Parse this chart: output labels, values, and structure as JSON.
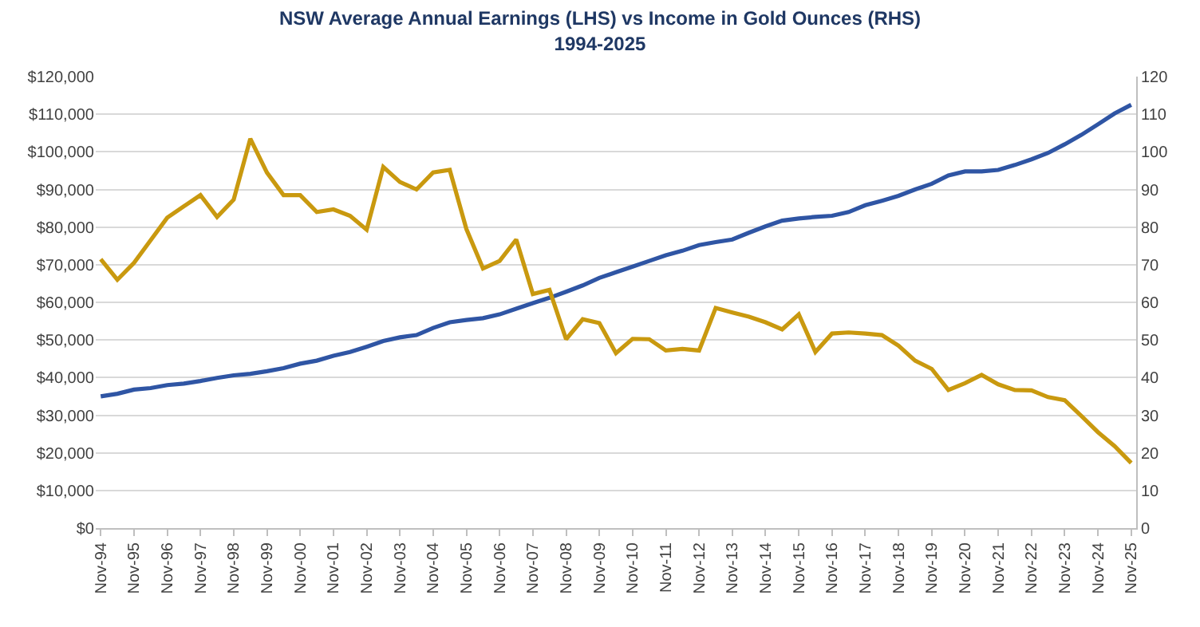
{
  "chart_data": {
    "type": "line",
    "title": "NSW Average Annual Earnings (LHS) vs Income in Gold Ounces (RHS)",
    "subtitle": "1994-2025",
    "categories": [
      "Nov-94",
      null,
      "Nov-95",
      null,
      "Nov-96",
      null,
      "Nov-97",
      null,
      "Nov-98",
      null,
      "Nov-99",
      null,
      "Nov-00",
      null,
      "Nov-01",
      null,
      "Nov-02",
      null,
      "Nov-03",
      null,
      "Nov-04",
      null,
      "Nov-05",
      null,
      "Nov-06",
      null,
      "Nov-07",
      null,
      "Nov-08",
      null,
      "Nov-09",
      null,
      "Nov-10",
      null,
      "Nov-11",
      null,
      "Nov-12",
      null,
      "Nov-13",
      null,
      "Nov-14",
      null,
      "Nov-15",
      null,
      "Nov-16",
      null,
      "Nov-17",
      null,
      "Nov-18",
      null,
      "Nov-19",
      null,
      "Nov-20",
      null,
      "Nov-21",
      null,
      "Nov-22",
      null,
      "Nov-23",
      null,
      "Nov-24",
      null,
      "Nov-25"
    ],
    "series": [
      {
        "color": "#2f55a4",
        "values": [
          35000,
          35700,
          36800,
          37200,
          38000,
          38400,
          39100,
          39900,
          40600,
          41000,
          41700,
          42500,
          43700,
          44500,
          45800,
          46800,
          48200,
          49700,
          50700,
          51300,
          53200,
          54700,
          55300,
          55800,
          56800,
          58300,
          59800,
          61200,
          62800,
          64500,
          66500,
          68000,
          69500,
          71000,
          72500,
          73700,
          75200,
          76000,
          76700,
          78500,
          80200,
          81700,
          82300,
          82700,
          83000,
          84000,
          85800,
          87000,
          88300,
          90000,
          91500,
          93700,
          94800,
          94800,
          95200,
          96500,
          98000,
          99700,
          102000,
          104500,
          107300,
          110200,
          112500
        ]
      },
      {
        "color": "#c9990f",
        "axis": "y2",
        "values": [
          71.5,
          66,
          70.5,
          76.5,
          82.5,
          85.5,
          88.5,
          82.7,
          87.3,
          103.5,
          94.5,
          88.5,
          88.5,
          84,
          84.7,
          83,
          79.3,
          96,
          92,
          90,
          94.5,
          95.2,
          79.5,
          69,
          71,
          76.7,
          62.2,
          63.3,
          50.2,
          55.5,
          54.5,
          46.5,
          50.3,
          50.2,
          47.2,
          47.6,
          47.2,
          58.5,
          57.3,
          56.2,
          54.7,
          52.8,
          56.8,
          46.8,
          51.7,
          52,
          51.7,
          51.3,
          48.5,
          44.5,
          42.3,
          36.7,
          38.5,
          40.7,
          38.2,
          36.7,
          36.6,
          34.8,
          34,
          29.8,
          25.5,
          21.8,
          17.3
        ]
      }
    ],
    "ylim": [
      0,
      120000
    ],
    "yticks": [
      {
        "value": 0,
        "label": "$0"
      },
      {
        "value": 10000,
        "label": "$10,000"
      },
      {
        "value": 20000,
        "label": "$20,000"
      },
      {
        "value": 30000,
        "label": "$30,000"
      },
      {
        "value": 40000,
        "label": "$40,000"
      },
      {
        "value": 50000,
        "label": "$50,000"
      },
      {
        "value": 60000,
        "label": "$60,000"
      },
      {
        "value": 70000,
        "label": "$70,000"
      },
      {
        "value": 80000,
        "label": "$80,000"
      },
      {
        "value": 90000,
        "label": "$90,000"
      },
      {
        "value": 100000,
        "label": "$100,000"
      },
      {
        "value": 110000,
        "label": "$110,000"
      },
      {
        "value": 120000,
        "label": "$120,000"
      }
    ],
    "y2lim": [
      0,
      120
    ],
    "y2ticks": [
      0,
      10,
      20,
      30,
      40,
      50,
      60,
      70,
      80,
      90,
      100,
      110,
      120
    ],
    "grid": "y",
    "marker": "none",
    "line_style": "solid"
  }
}
